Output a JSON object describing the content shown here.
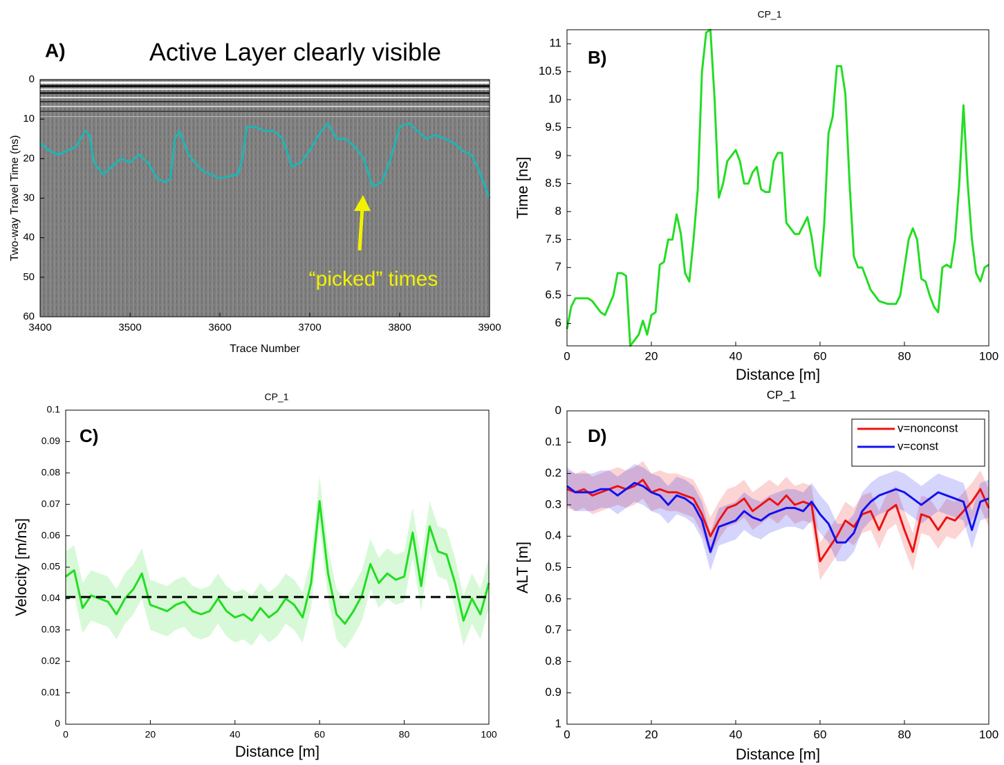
{
  "chart_data": [
    {
      "type": "line",
      "panel_label": "A)",
      "title": "Active Layer clearly visible",
      "xlabel": "Trace Number",
      "ylabel": "Two-way Travel Time (ns)",
      "annotation": "“picked” times",
      "annotation_color": "#f2f200",
      "xlim": [
        3400,
        3900
      ],
      "ylim": [
        0,
        60
      ],
      "y_inverted": true,
      "xticks": [
        3400,
        3500,
        3600,
        3700,
        3800,
        3900
      ],
      "yticks": [
        0,
        10,
        20,
        30,
        40,
        50,
        60
      ],
      "x": [
        3400,
        3410,
        3420,
        3430,
        3440,
        3450,
        3455,
        3460,
        3470,
        3480,
        3490,
        3500,
        3510,
        3520,
        3530,
        3540,
        3545,
        3550,
        3555,
        3565,
        3580,
        3600,
        3620,
        3625,
        3630,
        3640,
        3650,
        3660,
        3670,
        3680,
        3690,
        3700,
        3710,
        3720,
        3730,
        3740,
        3750,
        3760,
        3770,
        3780,
        3790,
        3800,
        3810,
        3820,
        3830,
        3840,
        3850,
        3860,
        3870,
        3880,
        3890,
        3900
      ],
      "series": [
        {
          "color": "#1fb5b5",
          "values": [
            16,
            18,
            19,
            18,
            17,
            13,
            14,
            21,
            24,
            22,
            20,
            21,
            19,
            21,
            25,
            26,
            25,
            15,
            13,
            19,
            23,
            25,
            24,
            20,
            12,
            12,
            13,
            13,
            15,
            22,
            21,
            18,
            14,
            11,
            15,
            15,
            17,
            20,
            27,
            26,
            20,
            12,
            11,
            13,
            15,
            14,
            15,
            16,
            18,
            19,
            24,
            30
          ]
        }
      ]
    },
    {
      "type": "line",
      "panel_label": "B)",
      "title": "CP_1",
      "xlabel": "Distance [m]",
      "ylabel": "Time [ns]",
      "xlim": [
        0,
        100
      ],
      "ylim": [
        5.6,
        11.25
      ],
      "xticks": [
        0,
        20,
        40,
        60,
        80,
        100
      ],
      "yticks": [
        6,
        6.5,
        7,
        7.5,
        8,
        8.5,
        9,
        9.5,
        10,
        10.5,
        11
      ],
      "x": [
        0,
        1,
        2,
        5,
        6,
        8,
        9,
        11,
        12,
        13,
        14,
        15,
        17,
        18,
        19,
        20,
        21,
        22,
        23,
        24,
        25,
        26,
        27,
        28,
        29,
        30,
        31,
        32,
        33,
        34,
        35,
        36,
        37,
        38,
        40,
        41,
        42,
        43,
        44,
        45,
        46,
        47,
        48,
        49,
        50,
        51,
        52,
        54,
        55,
        57,
        58,
        59,
        60,
        61,
        62,
        63,
        64,
        65,
        66,
        67,
        68,
        69,
        70,
        72,
        74,
        76,
        78,
        79,
        80,
        81,
        82,
        83,
        84,
        85,
        86,
        87,
        88,
        89,
        90,
        91,
        92,
        93,
        94,
        95,
        96,
        97,
        98,
        99,
        100
      ],
      "series": [
        {
          "color": "#22dd22",
          "values": [
            5.9,
            6.3,
            6.45,
            6.45,
            6.4,
            6.2,
            6.15,
            6.5,
            6.9,
            6.9,
            6.85,
            5.6,
            5.8,
            6.05,
            5.8,
            6.15,
            6.2,
            7.05,
            7.1,
            7.5,
            7.5,
            7.95,
            7.6,
            6.9,
            6.75,
            7.5,
            8.4,
            10.5,
            11.2,
            11.25,
            10,
            8.25,
            8.5,
            8.9,
            9.1,
            8.9,
            8.5,
            8.5,
            8.7,
            8.8,
            8.4,
            8.35,
            8.35,
            8.9,
            9.05,
            9.05,
            7.8,
            7.6,
            7.6,
            7.9,
            7.55,
            7.0,
            6.85,
            7.8,
            9.4,
            9.7,
            10.6,
            10.6,
            10.1,
            8.5,
            7.2,
            7.0,
            7.0,
            6.6,
            6.4,
            6.35,
            6.35,
            6.5,
            7.0,
            7.5,
            7.7,
            7.5,
            6.8,
            6.75,
            6.5,
            6.3,
            6.2,
            7.0,
            7.05,
            7.0,
            7.5,
            8.5,
            9.9,
            8.5,
            7.5,
            6.9,
            6.75,
            7.0,
            7.05
          ]
        }
      ]
    },
    {
      "type": "line",
      "panel_label": "C)",
      "title": "CP_1",
      "xlabel": "Distance [m]",
      "ylabel": "Velocity [m/ns]",
      "xlim": [
        0,
        100
      ],
      "ylim": [
        0,
        0.1
      ],
      "xticks": [
        0,
        20,
        40,
        60,
        80,
        100
      ],
      "yticks": [
        0,
        0.01,
        0.02,
        0.03,
        0.04,
        0.05,
        0.06,
        0.07,
        0.08,
        0.09,
        0.1
      ],
      "x": [
        0,
        2,
        4,
        6,
        8,
        10,
        12,
        14,
        16,
        18,
        20,
        22,
        24,
        26,
        28,
        30,
        32,
        34,
        36,
        38,
        40,
        42,
        44,
        46,
        48,
        50,
        52,
        54,
        56,
        58,
        60,
        62,
        64,
        66,
        68,
        70,
        72,
        74,
        76,
        78,
        80,
        82,
        84,
        86,
        88,
        90,
        92,
        94,
        96,
        98,
        100
      ],
      "reference_line": {
        "value": 0.0405,
        "color": "#000000"
      },
      "series": [
        {
          "color": "#22dd22",
          "error": 0.008,
          "values": [
            0.047,
            0.049,
            0.037,
            0.041,
            0.04,
            0.039,
            0.035,
            0.04,
            0.043,
            0.048,
            0.038,
            0.037,
            0.036,
            0.038,
            0.039,
            0.036,
            0.035,
            0.036,
            0.04,
            0.036,
            0.034,
            0.035,
            0.033,
            0.037,
            0.034,
            0.036,
            0.04,
            0.038,
            0.034,
            0.045,
            0.071,
            0.048,
            0.035,
            0.032,
            0.036,
            0.041,
            0.051,
            0.045,
            0.048,
            0.046,
            0.047,
            0.061,
            0.044,
            0.063,
            0.055,
            0.054,
            0.045,
            0.033,
            0.04,
            0.035,
            0.045
          ]
        }
      ]
    },
    {
      "type": "line",
      "panel_label": "D)",
      "title": "CP_1",
      "xlabel": "Distance [m]",
      "ylabel": "ALT [m]",
      "legend": "upper right",
      "xlim": [
        0,
        100
      ],
      "ylim": [
        0,
        1
      ],
      "y_inverted": true,
      "xticks": [
        0,
        20,
        40,
        60,
        80,
        100
      ],
      "yticks": [
        0,
        0.1,
        0.2,
        0.3,
        0.4,
        0.5,
        0.6,
        0.7,
        0.8,
        0.9,
        1
      ],
      "x": [
        0,
        2,
        4,
        6,
        8,
        10,
        12,
        14,
        16,
        18,
        20,
        22,
        24,
        26,
        28,
        30,
        32,
        34,
        36,
        38,
        40,
        42,
        44,
        46,
        48,
        50,
        52,
        54,
        56,
        58,
        60,
        62,
        64,
        66,
        68,
        70,
        72,
        74,
        76,
        78,
        80,
        82,
        84,
        86,
        88,
        90,
        92,
        94,
        96,
        98,
        100
      ],
      "series": [
        {
          "name": "v=nonconst",
          "color": "#ee1111",
          "error": 0.06,
          "values": [
            0.25,
            0.26,
            0.25,
            0.27,
            0.26,
            0.25,
            0.24,
            0.25,
            0.24,
            0.22,
            0.26,
            0.25,
            0.26,
            0.26,
            0.27,
            0.28,
            0.33,
            0.4,
            0.35,
            0.31,
            0.3,
            0.28,
            0.32,
            0.3,
            0.28,
            0.3,
            0.27,
            0.3,
            0.29,
            0.3,
            0.48,
            0.44,
            0.4,
            0.35,
            0.37,
            0.33,
            0.32,
            0.38,
            0.32,
            0.3,
            0.38,
            0.45,
            0.33,
            0.34,
            0.38,
            0.34,
            0.35,
            0.32,
            0.29,
            0.25,
            0.31
          ]
        },
        {
          "name": "v=const",
          "color": "#1111ee",
          "error": 0.06,
          "values": [
            0.24,
            0.26,
            0.26,
            0.26,
            0.25,
            0.25,
            0.27,
            0.25,
            0.23,
            0.24,
            0.26,
            0.27,
            0.3,
            0.27,
            0.28,
            0.3,
            0.35,
            0.45,
            0.37,
            0.36,
            0.35,
            0.32,
            0.34,
            0.35,
            0.33,
            0.32,
            0.31,
            0.31,
            0.32,
            0.29,
            0.33,
            0.36,
            0.42,
            0.42,
            0.39,
            0.32,
            0.29,
            0.27,
            0.26,
            0.25,
            0.26,
            0.28,
            0.3,
            0.28,
            0.26,
            0.27,
            0.28,
            0.29,
            0.38,
            0.29,
            0.28
          ]
        }
      ]
    }
  ]
}
